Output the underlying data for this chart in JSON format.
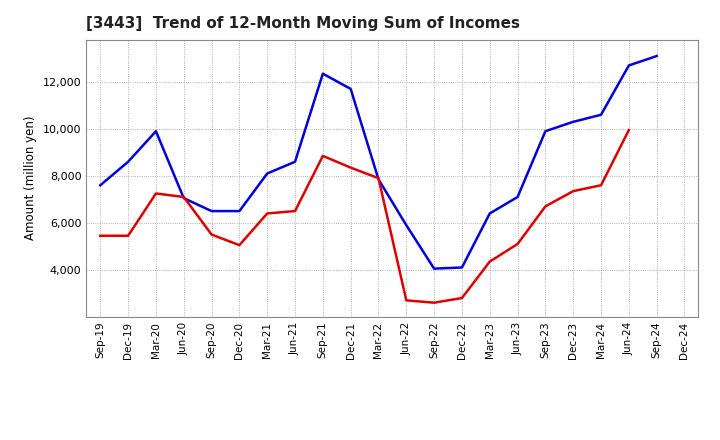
{
  "title": "[3443]  Trend of 12-Month Moving Sum of Incomes",
  "ylabel": "Amount (million yen)",
  "background_color": "#ffffff",
  "grid_color": "#999999",
  "x_labels": [
    "Sep-19",
    "Dec-19",
    "Mar-20",
    "Jun-20",
    "Sep-20",
    "Dec-20",
    "Mar-21",
    "Jun-21",
    "Sep-21",
    "Dec-21",
    "Mar-22",
    "Jun-22",
    "Sep-22",
    "Dec-22",
    "Mar-23",
    "Jun-23",
    "Sep-23",
    "Dec-23",
    "Mar-24",
    "Jun-24",
    "Sep-24",
    "Dec-24"
  ],
  "ordinary_income": [
    7600,
    8600,
    9900,
    7050,
    6500,
    6500,
    8100,
    8600,
    12350,
    11700,
    7850,
    5900,
    4050,
    4100,
    6400,
    7100,
    9900,
    10300,
    10600,
    12700,
    13100,
    null
  ],
  "net_income": [
    5450,
    5450,
    7250,
    7100,
    5500,
    5050,
    6400,
    6500,
    8850,
    8350,
    7900,
    2700,
    2600,
    2800,
    4350,
    5100,
    6700,
    7350,
    7600,
    9950,
    null,
    null
  ],
  "ordinary_color": "#0000dd",
  "net_color": "#dd0000",
  "ylim_min": 2000,
  "ylim_max": 13800,
  "yticks": [
    4000,
    6000,
    8000,
    10000,
    12000
  ],
  "line_width": 1.8
}
